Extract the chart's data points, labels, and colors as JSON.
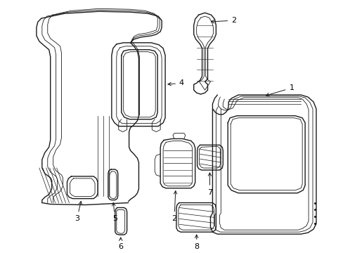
{
  "bg_color": "#ffffff",
  "line_color": "#1a1a1a",
  "lw": 1.0,
  "tlw": 0.6,
  "fig_w": 4.89,
  "fig_h": 3.6,
  "dpi": 100
}
